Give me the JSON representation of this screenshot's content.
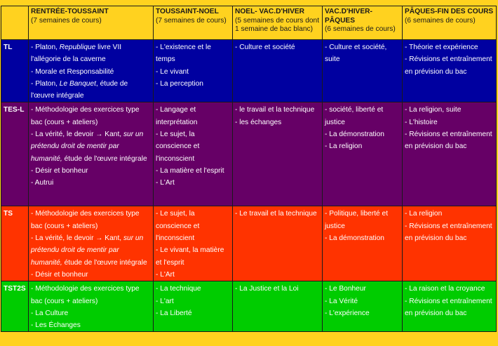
{
  "table": {
    "header": {
      "corner": "",
      "periods": [
        {
          "name": "RENTRÉE-TOUSSAINT",
          "sub": "(7 semaines de cours)"
        },
        {
          "name": "TOUSSAINT-NOEL",
          "sub": "(7 semaines de cours)"
        },
        {
          "name": "NOEL- VAC.D'HIVER",
          "sub": "(5 semaines de cours dont 1 semaine de bac blanc)"
        },
        {
          "name": "VAC.D'HIVER-PÂQUES",
          "sub": "(6 semaines de cours)"
        },
        {
          "name": "PÂQUES-FIN DES COURS",
          "sub": "(6 semaines de cours)"
        }
      ]
    },
    "rows": [
      {
        "label": "TL",
        "color": "#0000A0",
        "cells": [
          [
            "- Platon, ",
            "Republique",
            " livre VII l'allégorie de la caverne",
            "- Morale et Responsabilité",
            "- Platon, ",
            "Le Banquet",
            ", étude de l'œuvre intégrale"
          ],
          [
            "- L'existence et le temps",
            "- Le vivant",
            "- La perception"
          ],
          [
            "- Culture et société"
          ],
          [
            "- Culture et société, suite"
          ],
          [
            "- Théorie et expérience",
            "- Révisions et entraînement en prévision du bac"
          ]
        ]
      },
      {
        "label": "TES-L",
        "color": "#660066",
        "cells": [
          [
            "- Méthodologie des exercices type bac (cours + ateliers)",
            "- La vérité, le devoir → Kant, ",
            "sur un prétendu droit de mentir par humanité,",
            " étude de l'œuvre intégrale",
            "- Désir et bonheur",
            "- Autrui"
          ],
          [
            "- Langage et interprétation",
            "- Le sujet, la conscience et l'inconscient",
            "- La matière et l'esprit",
            "- L'Art"
          ],
          [
            "- le travail et la technique",
            "- les échanges"
          ],
          [
            "- société, liberté et justice",
            "- La démonstration",
            "- La religion"
          ],
          [
            "- La religion, suite",
            "- L'histoire",
            "- Révisions et entraînement en prévision du bac"
          ]
        ]
      },
      {
        "label": "TS",
        "color": "#FF3300",
        "cells": [
          [
            "- Méthodologie des exercices type bac (cours + ateliers)",
            "- La vérité, le devoir → Kant, ",
            "sur un prétendu droit de mentir par humanité,",
            " étude de l'œuvre intégrale",
            "- Désir et bonheur"
          ],
          [
            "- Le sujet, la conscience et l'inconscient",
            "- Le vivant, la matière et l'esprit",
            "- L'Art"
          ],
          [
            "- Le travail et la technique"
          ],
          [
            "- Politique, liberté et justice",
            "- La démonstration"
          ],
          [
            "- La religion",
            "- Révisions et entraînement en prévision du bac"
          ]
        ]
      },
      {
        "label": "TST2S",
        "color": "#00CC00",
        "cells": [
          [
            "- Méthodologie des exercices type bac (cours + ateliers)",
            "- La Culture",
            "- Les Échanges"
          ],
          [
            "- La technique",
            "- L'art",
            "- La Liberté"
          ],
          [
            "-  La Justice et la Loi"
          ],
          [
            "- Le Bonheur",
            "- La Vérité",
            "- L'expérience"
          ],
          [
            "- La raison et la croyance",
            "- Révisions et entraînement en prévision du bac"
          ]
        ]
      }
    ]
  },
  "colors": {
    "background": "#FFD21F",
    "header": "#FFD21F",
    "tl": "#0000A0",
    "tes_l": "#660066",
    "ts": "#FF3300",
    "tst2s": "#00CC00",
    "border": "#1a1a1a"
  }
}
